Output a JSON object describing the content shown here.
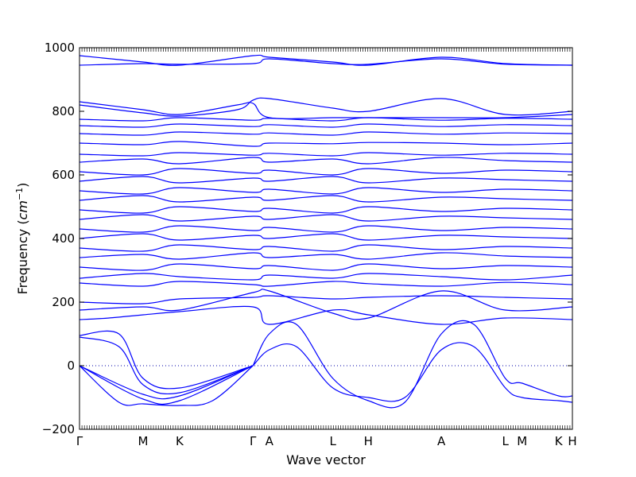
{
  "chart_data": {
    "type": "line",
    "title": "",
    "xlabel": "Wave vector",
    "ylabel_main": "Frequency (",
    "ylabel_unit": "cm",
    "ylabel_exp": "−1",
    "ylabel_close": ")",
    "ylim": [
      -200,
      1000
    ],
    "yticks": [
      "−200",
      "0",
      "200",
      "400",
      "600",
      "800",
      "1000"
    ],
    "ytick_values": [
      -200,
      0,
      200,
      400,
      600,
      800,
      1000
    ],
    "xrange": [
      0,
      100
    ],
    "xticks": [
      {
        "label": "Γ",
        "x": 0
      },
      {
        "label": "M",
        "x": 12.9
      },
      {
        "label": "K",
        "x": 20.3
      },
      {
        "label": "Γ",
        "x": 35.2
      },
      {
        "label": "A",
        "x": 38.5
      },
      {
        "label": "L",
        "x": 51.4
      },
      {
        "label": "H",
        "x": 58.6
      },
      {
        "label": "A",
        "x": 73.4
      },
      {
        "label": "L",
        "x": 86.4
      },
      {
        "label": "M",
        "x": 89.8
      },
      {
        "label": "K",
        "x": 97.2
      },
      {
        "label": "H",
        "x": 100
      }
    ],
    "zero_line": 0,
    "line_color": "#0000ff",
    "zero_line_color": "#0000aa",
    "series": [
      {
        "x": [
          0,
          12.9,
          20.3,
          35.2
        ],
        "y": [
          0,
          -105,
          -110,
          0
        ]
      },
      {
        "x": [
          0,
          12.9,
          20.3,
          35.2
        ],
        "y": [
          0,
          -90,
          -95,
          0
        ]
      },
      {
        "x": [
          0,
          8,
          12.9,
          20.3,
          27,
          35.2
        ],
        "y": [
          0,
          -115,
          -120,
          -125,
          -110,
          0
        ]
      },
      {
        "x": [
          0,
          8,
          12.9,
          20.3,
          35.2
        ],
        "y": [
          90,
          60,
          -60,
          -85,
          0
        ]
      },
      {
        "x": [
          0,
          8,
          12.9,
          20.3,
          35.2
        ],
        "y": [
          95,
          100,
          -40,
          -70,
          0
        ]
      },
      {
        "x": [
          35.2,
          38.5,
          44,
          51.4,
          58.6,
          66,
          73.4,
          80,
          86.4,
          89.8,
          97.2,
          100
        ],
        "y": [
          0,
          50,
          60,
          -70,
          -100,
          -100,
          50,
          60,
          -70,
          -100,
          -110,
          -115
        ]
      },
      {
        "x": [
          35.2,
          38.5,
          44,
          51.4,
          58.6,
          66,
          73.4,
          80,
          86.4,
          89.8,
          97.2,
          100
        ],
        "y": [
          0,
          100,
          130,
          -40,
          -110,
          -115,
          100,
          130,
          -40,
          -55,
          -95,
          -95
        ]
      },
      {
        "x": [
          0,
          6,
          12.9,
          20.3,
          35.2,
          38.5,
          51.4,
          58.6,
          73.4,
          86.4,
          100
        ],
        "y": [
          145,
          150,
          160,
          170,
          185,
          130,
          175,
          160,
          130,
          150,
          145
        ]
      },
      {
        "x": [
          0,
          12.9,
          20.3,
          35.2,
          38.5,
          51.4,
          58.6,
          73.4,
          86.4,
          100
        ],
        "y": [
          175,
          185,
          175,
          230,
          235,
          165,
          150,
          235,
          175,
          185
        ]
      },
      {
        "x": [
          0,
          12.9,
          20.3,
          35.2,
          38.5,
          51.4,
          58.6,
          73.4,
          86.4,
          100
        ],
        "y": [
          200,
          195,
          210,
          215,
          220,
          210,
          215,
          220,
          215,
          210
        ]
      },
      {
        "x": [
          0,
          12.9,
          20.3,
          35.2,
          38.5,
          51.4,
          58.6,
          73.4,
          86.4,
          100
        ],
        "y": [
          260,
          250,
          265,
          255,
          250,
          265,
          258,
          250,
          262,
          255
        ]
      },
      {
        "x": [
          0,
          12.9,
          20.3,
          35.2,
          38.5,
          51.4,
          58.6,
          73.4,
          86.4,
          100
        ],
        "y": [
          275,
          290,
          280,
          270,
          285,
          275,
          290,
          280,
          270,
          285
        ]
      },
      {
        "x": [
          0,
          12.9,
          20.3,
          35.2,
          38.5,
          51.4,
          58.6,
          73.4,
          86.4,
          100
        ],
        "y": [
          310,
          300,
          320,
          305,
          315,
          300,
          320,
          305,
          315,
          310
        ]
      },
      {
        "x": [
          0,
          12.9,
          20.3,
          35.2,
          38.5,
          51.4,
          58.6,
          73.4,
          86.4,
          100
        ],
        "y": [
          340,
          350,
          335,
          355,
          340,
          350,
          335,
          355,
          345,
          340
        ]
      },
      {
        "x": [
          0,
          12.9,
          20.3,
          35.2,
          38.5,
          51.4,
          58.6,
          73.4,
          86.4,
          100
        ],
        "y": [
          370,
          360,
          380,
          365,
          375,
          360,
          380,
          365,
          375,
          370
        ]
      },
      {
        "x": [
          0,
          12.9,
          20.3,
          35.2,
          38.5,
          51.4,
          58.6,
          73.4,
          86.4,
          100
        ],
        "y": [
          400,
          415,
          395,
          410,
          400,
          415,
          395,
          410,
          405,
          400
        ]
      },
      {
        "x": [
          0,
          12.9,
          20.3,
          35.2,
          38.5,
          51.4,
          58.6,
          73.4,
          86.4,
          100
        ],
        "y": [
          430,
          420,
          440,
          425,
          435,
          420,
          440,
          425,
          435,
          430
        ]
      },
      {
        "x": [
          0,
          12.9,
          20.3,
          35.2,
          38.5,
          51.4,
          58.6,
          73.4,
          86.4,
          100
        ],
        "y": [
          460,
          475,
          455,
          470,
          460,
          475,
          455,
          470,
          465,
          460
        ]
      },
      {
        "x": [
          0,
          12.9,
          20.3,
          35.2,
          38.5,
          51.4,
          58.6,
          73.4,
          86.4,
          100
        ],
        "y": [
          490,
          480,
          500,
          485,
          495,
          480,
          500,
          485,
          495,
          490
        ]
      },
      {
        "x": [
          0,
          12.9,
          20.3,
          35.2,
          38.5,
          51.4,
          58.6,
          73.4,
          86.4,
          100
        ],
        "y": [
          520,
          535,
          515,
          530,
          520,
          535,
          515,
          530,
          525,
          520
        ]
      },
      {
        "x": [
          0,
          12.9,
          20.3,
          35.2,
          38.5,
          51.4,
          58.6,
          73.4,
          86.4,
          100
        ],
        "y": [
          550,
          540,
          560,
          545,
          555,
          540,
          560,
          545,
          555,
          550
        ]
      },
      {
        "x": [
          0,
          12.9,
          20.3,
          35.2,
          38.5,
          51.4,
          58.6,
          73.4,
          86.4,
          100
        ],
        "y": [
          580,
          595,
          575,
          590,
          580,
          595,
          575,
          590,
          585,
          580
        ]
      },
      {
        "x": [
          0,
          12.9,
          20.3,
          35.2,
          38.5,
          51.4,
          58.6,
          73.4,
          86.4,
          100
        ],
        "y": [
          610,
          600,
          620,
          605,
          615,
          600,
          620,
          605,
          615,
          610
        ]
      },
      {
        "x": [
          0,
          12.9,
          20.3,
          35.2,
          38.5,
          51.4,
          58.6,
          73.4,
          86.4,
          100
        ],
        "y": [
          640,
          650,
          635,
          655,
          640,
          650,
          635,
          655,
          645,
          640
        ]
      },
      {
        "x": [
          0,
          12.9,
          20.3,
          35.2,
          38.5,
          51.4,
          58.6,
          73.4,
          86.4,
          100
        ],
        "y": [
          665,
          660,
          670,
          662,
          668,
          660,
          670,
          662,
          668,
          665
        ]
      },
      {
        "x": [
          0,
          12.9,
          20.3,
          35.2,
          38.5,
          51.4,
          58.6,
          73.4,
          86.4,
          100
        ],
        "y": [
          700,
          695,
          705,
          690,
          700,
          698,
          702,
          700,
          695,
          700
        ]
      },
      {
        "x": [
          0,
          12.9,
          20.3,
          35.2,
          38.5,
          51.4,
          58.6,
          73.4,
          86.4,
          100
        ],
        "y": [
          730,
          725,
          735,
          728,
          732,
          725,
          735,
          728,
          732,
          730
        ]
      },
      {
        "x": [
          0,
          12.9,
          20.3,
          35.2,
          38.5,
          51.4,
          58.6,
          73.4,
          86.4,
          100
        ],
        "y": [
          755,
          750,
          760,
          752,
          758,
          750,
          760,
          752,
          758,
          755
        ]
      },
      {
        "x": [
          0,
          12.9,
          20.3,
          35.2,
          38.5,
          51.4,
          58.6,
          73.4,
          86.4,
          100
        ],
        "y": [
          775,
          770,
          780,
          772,
          778,
          770,
          780,
          772,
          778,
          775
        ]
      },
      {
        "x": [
          0,
          12.9,
          20.3,
          32,
          35.2,
          38.5,
          51.4,
          58.6,
          73.4,
          86.4,
          100
        ],
        "y": [
          830,
          805,
          790,
          820,
          825,
          780,
          780,
          780,
          780,
          780,
          790
        ]
      },
      {
        "x": [
          0,
          12.9,
          20.3,
          32,
          35.2,
          38.5,
          51.4,
          58.6,
          73.4,
          86.4,
          100
        ],
        "y": [
          820,
          795,
          785,
          805,
          835,
          840,
          810,
          800,
          840,
          790,
          800
        ]
      },
      {
        "x": [
          0,
          12.9,
          20.3,
          35.2,
          38.5,
          51.4,
          58.6,
          73.4,
          86.4,
          100
        ],
        "y": [
          975,
          955,
          945,
          975,
          970,
          955,
          945,
          970,
          950,
          945
        ]
      },
      {
        "x": [
          0,
          12.9,
          20.3,
          35.2,
          38.5,
          51.4,
          58.6,
          73.4,
          86.4,
          100
        ],
        "y": [
          945,
          950,
          948,
          950,
          965,
          950,
          948,
          965,
          948,
          945
        ]
      }
    ]
  }
}
